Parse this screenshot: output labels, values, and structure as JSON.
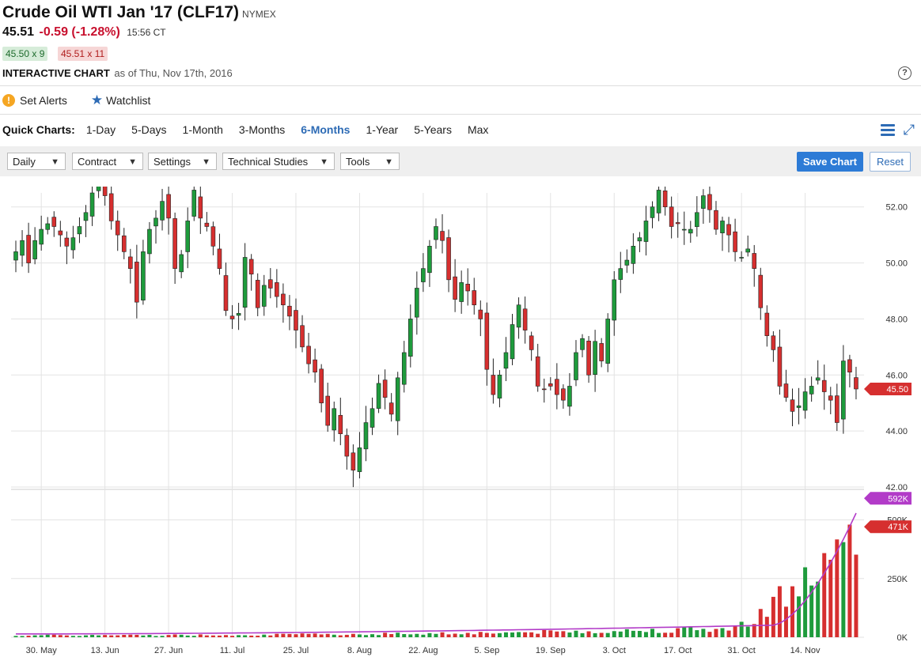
{
  "header": {
    "title": "Crude Oil WTI Jan '17 (CLF17)",
    "exchange": "NYMEX",
    "last": "45.51",
    "change": "-0.59 (-1.28%)",
    "time": "15:56 CT",
    "bid": "45.50 x 9",
    "ask": "45.51 x 11",
    "chart_title": "INTERACTIVE CHART",
    "as_of": "as of Thu, Nov 17th, 2016",
    "help": "?"
  },
  "actions": {
    "set_alerts": "Set Alerts",
    "watchlist": "Watchlist"
  },
  "quick_charts": {
    "label": "Quick Charts:",
    "items": [
      "1-Day",
      "5-Days",
      "1-Month",
      "3-Months",
      "6-Months",
      "1-Year",
      "5-Years",
      "Max"
    ],
    "active": "6-Months"
  },
  "toolbar": {
    "interval": "Daily",
    "contract": "Contract",
    "settings": "Settings",
    "studies": "Technical Studies",
    "tools": "Tools",
    "save_label": "Save Chart",
    "reset_label": "Reset"
  },
  "colors": {
    "up": "#1e9b3c",
    "down": "#d62f2f",
    "avg": "#b23bc8",
    "accent": "#2d7bd6"
  },
  "chart_data": {
    "type": "candlestick",
    "price_axis": {
      "ticks": [
        "42.00",
        "44.00",
        "46.00",
        "48.00",
        "50.00",
        "52.00"
      ],
      "range": [
        42,
        52.5
      ]
    },
    "volume_axis": {
      "ticks": [
        "0K",
        "250K",
        "500K"
      ],
      "range": [
        0,
        620
      ]
    },
    "x_ticks": [
      "30. May",
      "13. Jun",
      "27. Jun",
      "11. Jul",
      "25. Jul",
      "8. Aug",
      "22. Aug",
      "5. Sep",
      "19. Sep",
      "3. Oct",
      "17. Oct",
      "31. Oct",
      "14. Nov"
    ],
    "last_price_label": "45.50",
    "avg_volume_label": "592K",
    "last_volume_label": "471K",
    "close": [
      50.4,
      50.8,
      50.0,
      50.8,
      51.2,
      51.4,
      51.3,
      51.0,
      50.6,
      50.9,
      51.3,
      51.8,
      52.5,
      53.4,
      52.4,
      51.5,
      51.0,
      50.4,
      49.8,
      48.6,
      50.4,
      51.2,
      51.6,
      52.2,
      51.6,
      49.8,
      50.3,
      51.5,
      52.6,
      51.6,
      51.3,
      50.6,
      49.8,
      48.3,
      48.0,
      48.2,
      50.2,
      49.6,
      48.4,
      49.2,
      49.1,
      48.8,
      48.5,
      48.1,
      47.6,
      47.0,
      46.4,
      46.1,
      45.0,
      44.2,
      44.8,
      43.9,
      43.1,
      42.6,
      43.4,
      44.3,
      44.8,
      45.7,
      45.2,
      44.6,
      45.9,
      46.8,
      48.0,
      49.1,
      49.8,
      50.6,
      51.3,
      50.8,
      49.4,
      48.7,
      49.3,
      49.0,
      48.5,
      48.0,
      46.2,
      45.3,
      46.0,
      46.8,
      47.8,
      48.5,
      47.6,
      46.9,
      45.6,
      45.5,
      45.6,
      45.3,
      45.1,
      45.6,
      46.8,
      47.3,
      46.0,
      47.2,
      46.5,
      48.0,
      49.4,
      49.8,
      50.1,
      50.6,
      50.9,
      51.5,
      52.0,
      52.6,
      52.0,
      51.3,
      51.4,
      51.2,
      51.2,
      51.8,
      52.4,
      51.9,
      51.2,
      51.5,
      51.0,
      50.4,
      50.2,
      50.5,
      49.8,
      48.4,
      47.4,
      46.9,
      45.6,
      45.2,
      44.7,
      44.9,
      45.4,
      45.6,
      45.9,
      45.4,
      45.1,
      44.3,
      46.5,
      46.1,
      45.5
    ]
  }
}
